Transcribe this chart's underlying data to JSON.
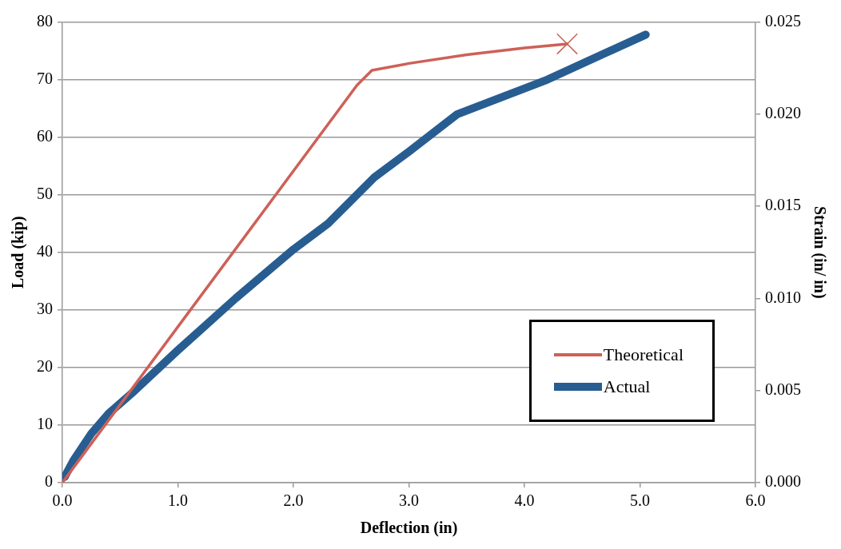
{
  "chart_data": {
    "type": "line",
    "xlabel": "Deflection (in)",
    "ylabel": "Load (kip)",
    "y2label": "Strain (in/ in)",
    "xlim": [
      0,
      6
    ],
    "xticks": [
      {
        "value": 0,
        "label": "0.0"
      },
      {
        "value": 1,
        "label": "1.0"
      },
      {
        "value": 2,
        "label": "2.0"
      },
      {
        "value": 3,
        "label": "3.0"
      },
      {
        "value": 4,
        "label": "4.0"
      },
      {
        "value": 5,
        "label": "5.0"
      },
      {
        "value": 6,
        "label": "6.0"
      }
    ],
    "ylim": [
      0,
      80
    ],
    "yticks": [
      0,
      10,
      20,
      30,
      40,
      50,
      60,
      70,
      80
    ],
    "y2lim": [
      0,
      0.025
    ],
    "y2ticks": [
      {
        "value": 0,
        "label": "0.000"
      },
      {
        "value": 0.005,
        "label": "0.005"
      },
      {
        "value": 0.01,
        "label": "0.010"
      },
      {
        "value": 0.015,
        "label": "0.015"
      },
      {
        "value": 0.02,
        "label": "0.020"
      },
      {
        "value": 0.025,
        "label": "0.025"
      }
    ],
    "grid": "y",
    "legend": "bottom right",
    "marker": "none",
    "line_style": "solid",
    "series": [
      {
        "name": "Theoretical",
        "color": "#cd6158",
        "x": [
          0,
          2.55,
          2.68,
          3.0,
          3.5,
          4.0,
          4.37
        ],
        "values": [
          0,
          69,
          71.6,
          72.8,
          74.3,
          75.5,
          76.2
        ]
      },
      {
        "name": "Actual",
        "color": "#285d91",
        "x": [
          0.02,
          0.1,
          0.25,
          0.4,
          0.6,
          1.0,
          1.5,
          2.0,
          2.3,
          2.7,
          3.0,
          3.42,
          4.2,
          5.05
        ],
        "values": [
          1,
          4,
          8.5,
          12,
          15.5,
          23,
          32,
          40.5,
          45,
          53,
          57.5,
          64,
          70,
          77.8
        ]
      },
      {
        "type": "scatter",
        "marker": "cross",
        "color": "#cd6158",
        "x": [
          4.37
        ],
        "values": [
          76.2
        ]
      }
    ]
  }
}
